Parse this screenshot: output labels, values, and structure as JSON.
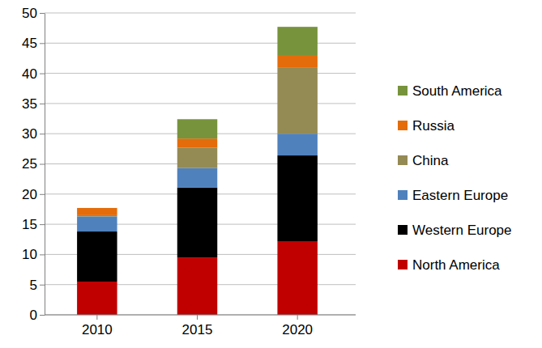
{
  "chart_data": {
    "type": "bar",
    "stacked": true,
    "grid": true,
    "legend": "right",
    "categories": [
      "2010",
      "2015",
      "2020"
    ],
    "ylim": [
      0,
      50
    ],
    "yticks": [
      0,
      5,
      10,
      15,
      20,
      25,
      30,
      35,
      40,
      45,
      50
    ],
    "series": [
      {
        "name": "North America",
        "color": "#c00000",
        "values": [
          5.5,
          9.5,
          12.2
        ]
      },
      {
        "name": "Western Europe",
        "color": "#000000",
        "values": [
          8.3,
          11.6,
          14.2
        ]
      },
      {
        "name": "Eastern Europe",
        "color": "#4f81bd",
        "values": [
          2.5,
          3.2,
          3.6
        ]
      },
      {
        "name": "China",
        "color": "#948a54",
        "values": [
          0.2,
          3.4,
          11.0
        ]
      },
      {
        "name": "Russia",
        "color": "#e46c0a",
        "values": [
          1.2,
          1.5,
          1.9
        ]
      },
      {
        "name": "South America",
        "color": "#77933c",
        "values": [
          0,
          3.2,
          4.8
        ]
      }
    ]
  }
}
